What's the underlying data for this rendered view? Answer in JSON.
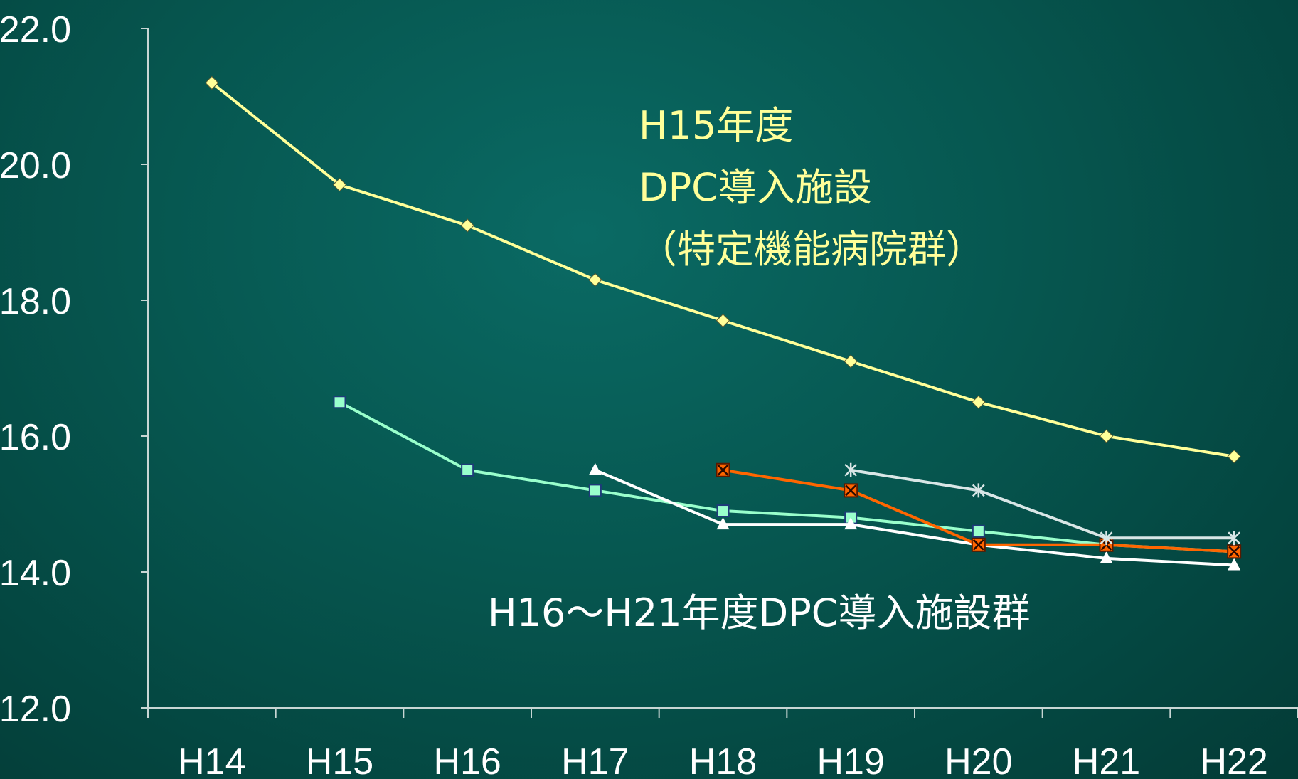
{
  "chart_data": {
    "type": "line",
    "categories": [
      "H14",
      "H15",
      "H16",
      "H17",
      "H18",
      "H19",
      "H20",
      "H21",
      "H22"
    ],
    "ylim": [
      12.0,
      22.0
    ],
    "yticks": [
      "12.0",
      "14.0",
      "16.0",
      "18.0",
      "20.0",
      "22.0"
    ],
    "grid": false,
    "series": [
      {
        "values": [
          21.2,
          19.7,
          19.1,
          18.3,
          17.7,
          17.1,
          16.5,
          16.0,
          15.7
        ],
        "color": "#ffff99",
        "marker": "diamond"
      },
      {
        "values": [
          null,
          16.5,
          15.5,
          15.2,
          14.9,
          14.8,
          14.6,
          14.4,
          14.3
        ],
        "color": "#99ffcc",
        "marker": "square"
      },
      {
        "values": [
          null,
          null,
          null,
          15.5,
          14.7,
          14.7,
          14.4,
          14.2,
          14.1
        ],
        "color": "#ffffff",
        "marker": "triangle"
      },
      {
        "values": [
          null,
          null,
          null,
          null,
          15.5,
          15.2,
          14.4,
          14.4,
          14.3
        ],
        "color": "#ff6600",
        "marker": "x-square"
      },
      {
        "values": [
          null,
          null,
          null,
          null,
          null,
          15.5,
          15.2,
          14.5,
          14.5
        ],
        "color": "#d9e6e6",
        "marker": "asterisk"
      }
    ],
    "annotations": {
      "top_line1": "H15年度",
      "top_line2": "DPC導入施設",
      "top_line3": "（特定機能病院群）",
      "bottom": "H16～H21年度DPC導入施設群"
    }
  }
}
